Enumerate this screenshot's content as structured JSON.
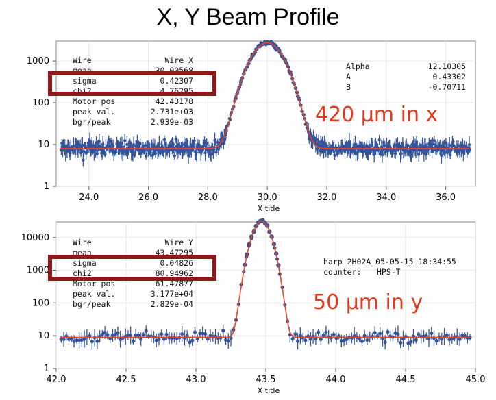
{
  "title": "X, Y Beam Profile",
  "colors": {
    "data": "#34559a",
    "fit": "#e8402a",
    "highlight": "#8b1a1a",
    "annotation": "#e5371b"
  },
  "chart_data": [
    {
      "type": "scatter",
      "title": "",
      "xlabel": "X title",
      "ylabel": "",
      "xlim": [
        22.9,
        37.0
      ],
      "ylim": [
        1,
        3000
      ],
      "yscale": "log",
      "xticks": [
        "24.0",
        "26.0",
        "28.0",
        "30.0",
        "32.0",
        "34.0",
        "36.0"
      ],
      "yticks": [
        "1",
        "10",
        "100",
        "1000"
      ],
      "grid": true,
      "fit": {
        "mean": 30.0,
        "sigma": 0.423,
        "peak": 2731,
        "baseline": 8
      },
      "stats": [
        [
          "Wire",
          "Wire X"
        ],
        [
          "mean",
          "30.00568"
        ],
        [
          "sigma",
          "0.42307"
        ],
        [
          "chi2",
          "4.76295"
        ],
        [
          "Motor pos",
          "42.43178"
        ],
        [
          "peak val.",
          "2.731e+03"
        ],
        [
          "bgr/peak",
          "2.939e-03"
        ]
      ],
      "highlighted_row": "sigma",
      "side_info": [
        [
          "Alpha",
          "12.10305"
        ],
        [
          "A",
          "0.43302"
        ],
        [
          "B",
          "-0.70711"
        ]
      ],
      "annotation": "420 μm in x"
    },
    {
      "type": "scatter",
      "title": "",
      "xlabel": "X title",
      "ylabel": "",
      "xlim": [
        42.0,
        45.0
      ],
      "ylim": [
        1,
        30000
      ],
      "yscale": "log",
      "xticks": [
        "42.0",
        "42.5",
        "43.0",
        "43.5",
        "44.0",
        "44.5",
        "45.0"
      ],
      "yticks": [
        "1",
        "10",
        "100",
        "1000",
        "10000"
      ],
      "grid": true,
      "fit": {
        "mean": 43.47,
        "sigma": 0.048,
        "peak": 31770,
        "baseline": 9
      },
      "stats": [
        [
          "Wire",
          "Wire Y"
        ],
        [
          "mean",
          "43.47295"
        ],
        [
          "sigma",
          "0.04826"
        ],
        [
          "chi2",
          "80.94962"
        ],
        [
          "Motor pos",
          "61.47877"
        ],
        [
          "peak val.",
          "3.177e+04"
        ],
        [
          "bgr/peak",
          "2.829e-04"
        ]
      ],
      "highlighted_row": "sigma",
      "side_info": [
        [
          "harp_2H02A_05-05-15_18:34:55",
          ""
        ],
        [
          "counter:",
          "HPS-T"
        ]
      ],
      "annotation": "50  μm in y"
    }
  ]
}
